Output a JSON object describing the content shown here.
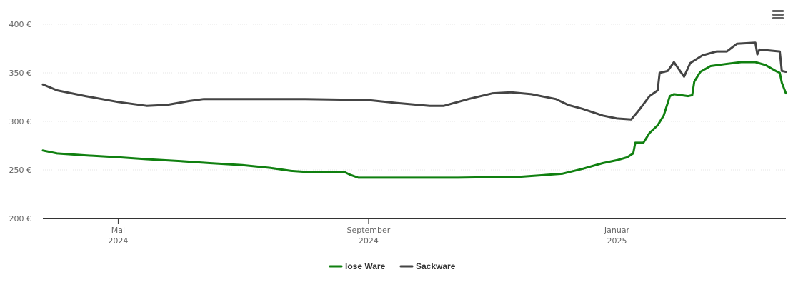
{
  "menu": {
    "icon": "hamburger-menu-icon"
  },
  "chart_data": {
    "type": "line",
    "title": "",
    "xlabel": "",
    "ylabel": "",
    "ylim": [
      200,
      400
    ],
    "y_ticks": [
      {
        "value": 200,
        "label": "200 €"
      },
      {
        "value": 250,
        "label": "250 €"
      },
      {
        "value": 300,
        "label": "300 €"
      },
      {
        "value": 350,
        "label": "350 €"
      },
      {
        "value": 400,
        "label": "400 €"
      }
    ],
    "xlim": [
      "2024-03-25",
      "2025-03-25"
    ],
    "x_ticks": [
      {
        "date": "2024-05-01",
        "month": "Mai",
        "year": "2024"
      },
      {
        "date": "2024-09-01",
        "month": "September",
        "year": "2024"
      },
      {
        "date": "2025-01-01",
        "month": "Januar",
        "year": "2025"
      }
    ],
    "grid": true,
    "legend_position": "bottom-center",
    "series": [
      {
        "name": "lose Ware",
        "color": "#108010",
        "points": [
          [
            "2024-03-25",
            270
          ],
          [
            "2024-04-01",
            267
          ],
          [
            "2024-04-15",
            265
          ],
          [
            "2024-05-01",
            263
          ],
          [
            "2024-05-15",
            261
          ],
          [
            "2024-06-01",
            259
          ],
          [
            "2024-06-15",
            257
          ],
          [
            "2024-07-01",
            255
          ],
          [
            "2024-07-15",
            252
          ],
          [
            "2024-07-25",
            249
          ],
          [
            "2024-08-01",
            248
          ],
          [
            "2024-08-20",
            248
          ],
          [
            "2024-08-23",
            245
          ],
          [
            "2024-08-27",
            242
          ],
          [
            "2024-09-15",
            242
          ],
          [
            "2024-10-15",
            242
          ],
          [
            "2024-11-15",
            243
          ],
          [
            "2024-12-05",
            246
          ],
          [
            "2024-12-15",
            251
          ],
          [
            "2024-12-25",
            257
          ],
          [
            "2025-01-01",
            260
          ],
          [
            "2025-01-06",
            263
          ],
          [
            "2025-01-09",
            267
          ],
          [
            "2025-01-10",
            278
          ],
          [
            "2025-01-14",
            278
          ],
          [
            "2025-01-17",
            288
          ],
          [
            "2025-01-21",
            296
          ],
          [
            "2025-01-24",
            306
          ],
          [
            "2025-01-27",
            326
          ],
          [
            "2025-01-29",
            328
          ],
          [
            "2025-02-05",
            326
          ],
          [
            "2025-02-07",
            327
          ],
          [
            "2025-02-08",
            341
          ],
          [
            "2025-02-11",
            351
          ],
          [
            "2025-02-16",
            357
          ],
          [
            "2025-02-23",
            359
          ],
          [
            "2025-03-03",
            361
          ],
          [
            "2025-03-10",
            361
          ],
          [
            "2025-03-15",
            358
          ],
          [
            "2025-03-20",
            352
          ],
          [
            "2025-03-22",
            350
          ],
          [
            "2025-03-23",
            340
          ],
          [
            "2025-03-25",
            329
          ]
        ]
      },
      {
        "name": "Sackware",
        "color": "#444444",
        "points": [
          [
            "2024-03-25",
            338
          ],
          [
            "2024-04-01",
            332
          ],
          [
            "2024-04-15",
            326
          ],
          [
            "2024-05-01",
            320
          ],
          [
            "2024-05-15",
            316
          ],
          [
            "2024-05-25",
            317
          ],
          [
            "2024-06-05",
            321
          ],
          [
            "2024-06-12",
            323
          ],
          [
            "2024-07-01",
            323
          ],
          [
            "2024-08-01",
            323
          ],
          [
            "2024-09-01",
            322
          ],
          [
            "2024-09-15",
            319
          ],
          [
            "2024-10-01",
            316
          ],
          [
            "2024-10-08",
            316
          ],
          [
            "2024-10-20",
            323
          ],
          [
            "2024-11-01",
            329
          ],
          [
            "2024-11-10",
            330
          ],
          [
            "2024-11-20",
            328
          ],
          [
            "2024-12-02",
            323
          ],
          [
            "2024-12-08",
            317
          ],
          [
            "2024-12-15",
            313
          ],
          [
            "2024-12-25",
            306
          ],
          [
            "2025-01-01",
            303
          ],
          [
            "2025-01-08",
            302
          ],
          [
            "2025-01-12",
            312
          ],
          [
            "2025-01-17",
            326
          ],
          [
            "2025-01-21",
            332
          ],
          [
            "2025-01-22",
            350
          ],
          [
            "2025-01-26",
            352
          ],
          [
            "2025-01-29",
            361
          ],
          [
            "2025-02-03",
            346
          ],
          [
            "2025-02-06",
            360
          ],
          [
            "2025-02-12",
            368
          ],
          [
            "2025-02-19",
            372
          ],
          [
            "2025-02-24",
            372
          ],
          [
            "2025-03-01",
            380
          ],
          [
            "2025-03-10",
            381
          ],
          [
            "2025-03-11",
            369
          ],
          [
            "2025-03-12",
            374
          ],
          [
            "2025-03-22",
            372
          ],
          [
            "2025-03-23",
            352
          ],
          [
            "2025-03-25",
            351
          ]
        ]
      }
    ]
  }
}
